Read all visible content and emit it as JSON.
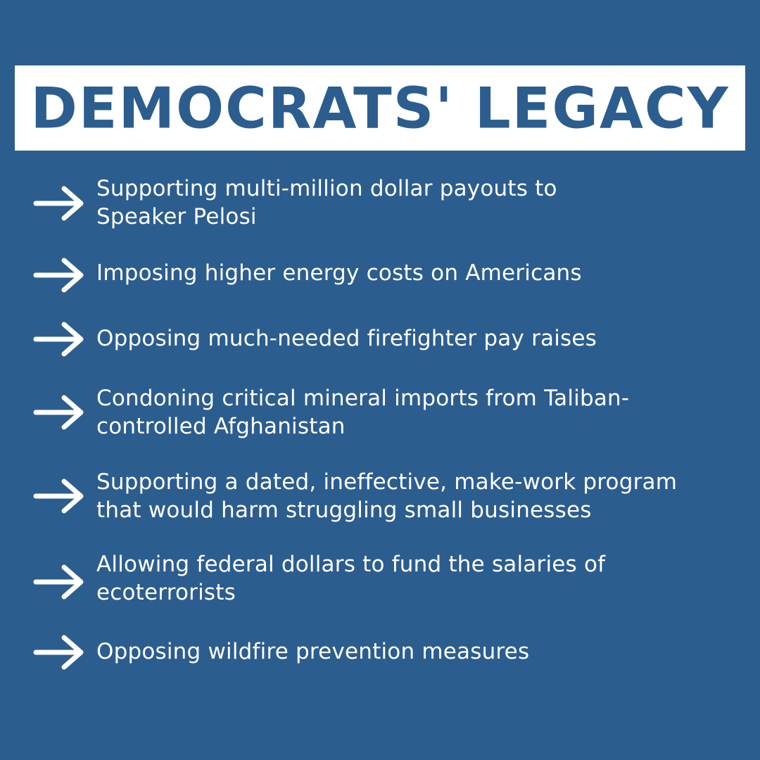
{
  "title": "DEMOCRATS' LEGACY",
  "items": [
    {
      "text": "Supporting multi-million dollar payouts to\nSpeaker Pelosi"
    },
    {
      "text": "Imposing higher energy costs on Americans"
    },
    {
      "text": " Opposing much-needed firefighter pay raises"
    },
    {
      "text": "Condoning critical mineral imports from Taliban-\ncontrolled Afghanistan"
    },
    {
      "text": "Supporting a dated, ineffective, make-work program\nthat would harm struggling small businesses"
    },
    {
      "text": " Allowing federal dollars to fund the salaries of\n ecoterrorists"
    },
    {
      "text": " Opposing wildfire prevention measures"
    }
  ],
  "colors": {
    "background": "#2c5d8f",
    "title_box": "#ffffff",
    "text": "#ffffff"
  },
  "icon": "right-arrow-icon"
}
